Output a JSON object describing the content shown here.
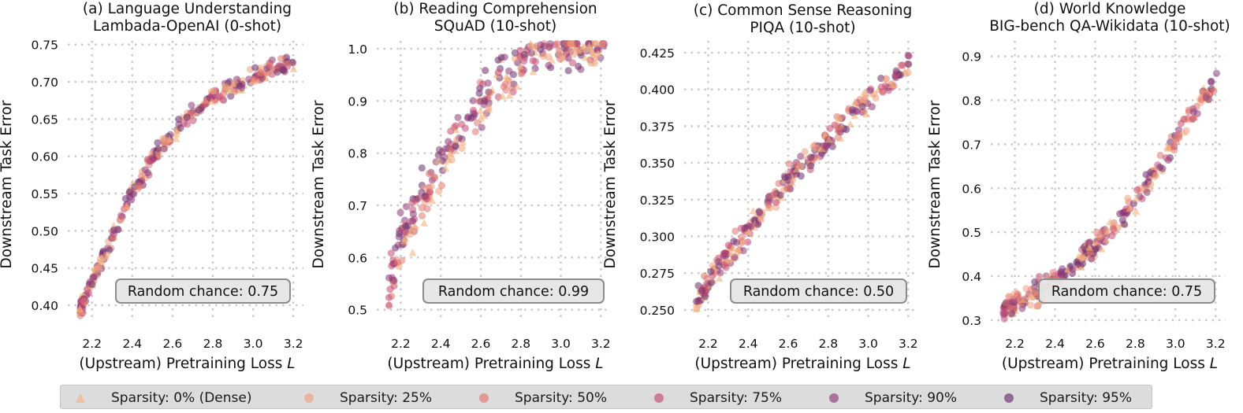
{
  "figure": {
    "xlabel": "(Upstream) Pretraining Loss L",
    "ylabel": "Downstream Task Error"
  },
  "legend": {
    "items": [
      {
        "label": "Sparsity: 0% (Dense)",
        "color": "#f2b27e",
        "marker": "triangle"
      },
      {
        "label": "Sparsity: 25%",
        "color": "#eea27f",
        "marker": "circle"
      },
      {
        "label": "Sparsity: 50%",
        "color": "#e0766f",
        "marker": "circle"
      },
      {
        "label": "Sparsity: 75%",
        "color": "#c44a72",
        "marker": "circle"
      },
      {
        "label": "Sparsity: 90%",
        "color": "#8e3a78",
        "marker": "circle"
      },
      {
        "label": "Sparsity: 95%",
        "color": "#6a2e6e",
        "marker": "circle"
      }
    ]
  },
  "chart_data": [
    {
      "type": "scatter",
      "title": [
        "(a) Language Understanding",
        "Lambada-OpenAI (0-shot)"
      ],
      "xlabel": "(Upstream) Pretraining Loss L",
      "ylabel": "Downstream Task Error",
      "xlim": [
        2.08,
        3.25
      ],
      "ylim": [
        0.38,
        0.755
      ],
      "xticks": [
        "2.2",
        "2.4",
        "2.6",
        "2.8",
        "3.0",
        "3.2"
      ],
      "yticks": [
        "0.40",
        "0.45",
        "0.50",
        "0.55",
        "0.60",
        "0.65",
        "0.70",
        "0.75"
      ],
      "trend": [
        [
          2.14,
          0.392
        ],
        [
          2.2,
          0.432
        ],
        [
          2.3,
          0.492
        ],
        [
          2.4,
          0.55
        ],
        [
          2.5,
          0.598
        ],
        [
          2.6,
          0.632
        ],
        [
          2.7,
          0.657
        ],
        [
          2.8,
          0.679
        ],
        [
          2.9,
          0.695
        ],
        [
          3.0,
          0.708
        ],
        [
          3.1,
          0.718
        ],
        [
          3.21,
          0.726
        ]
      ],
      "noise": 0.008,
      "annotation": "Random chance: 0.75"
    },
    {
      "type": "scatter",
      "title": [
        "(b) Reading Comprehension",
        "SQuAD (10-shot)"
      ],
      "xlabel": "(Upstream) Pretraining Loss L",
      "ylabel": "Downstream Task Error",
      "xlim": [
        2.08,
        3.25
      ],
      "ylim": [
        0.48,
        1.015
      ],
      "xticks": [
        "2.2",
        "2.4",
        "2.6",
        "2.8",
        "3.0",
        "3.2"
      ],
      "yticks": [
        "0.5",
        "0.6",
        "0.7",
        "0.8",
        "0.9",
        "1.0"
      ],
      "trend": [
        [
          2.14,
          0.5
        ],
        [
          2.2,
          0.6
        ],
        [
          2.3,
          0.68
        ],
        [
          2.4,
          0.76
        ],
        [
          2.5,
          0.83
        ],
        [
          2.6,
          0.88
        ],
        [
          2.7,
          0.93
        ],
        [
          2.8,
          0.97
        ],
        [
          2.9,
          0.99
        ],
        [
          3.0,
          0.995
        ],
        [
          3.1,
          0.998
        ],
        [
          3.2,
          0.999
        ]
      ],
      "noise": 0.03,
      "annotation": "Random chance: 0.99"
    },
    {
      "type": "scatter",
      "title": [
        "(c) Common Sense Reasoning",
        "PIQA (10-shot)"
      ],
      "xlabel": "(Upstream) Pretraining Loss L",
      "ylabel": "Downstream Task Error",
      "xlim": [
        2.08,
        3.25
      ],
      "ylim": [
        0.243,
        0.433
      ],
      "xticks": [
        "2.2",
        "2.4",
        "2.6",
        "2.8",
        "3.0",
        "3.2"
      ],
      "yticks": [
        "0.250",
        "0.275",
        "0.300",
        "0.325",
        "0.350",
        "0.375",
        "0.400",
        "0.425"
      ],
      "trend": [
        [
          2.14,
          0.255
        ],
        [
          2.2,
          0.268
        ],
        [
          2.3,
          0.288
        ],
        [
          2.4,
          0.305
        ],
        [
          2.5,
          0.322
        ],
        [
          2.6,
          0.338
        ],
        [
          2.7,
          0.352
        ],
        [
          2.8,
          0.366
        ],
        [
          2.9,
          0.38
        ],
        [
          3.0,
          0.393
        ],
        [
          3.1,
          0.405
        ],
        [
          3.2,
          0.416
        ]
      ],
      "noise": 0.006,
      "annotation": "Random chance: 0.50"
    },
    {
      "type": "scatter",
      "title": [
        "(d) World Knowledge",
        "BIG-bench QA-Wikidata (10-shot)"
      ],
      "xlabel": "(Upstream) Pretraining Loss L",
      "ylabel": "Downstream Task Error",
      "xlim": [
        2.08,
        3.25
      ],
      "ylim": [
        0.3,
        0.935
      ],
      "xticks": [
        "2.2",
        "2.4",
        "2.6",
        "2.8",
        "3.0",
        "3.2"
      ],
      "yticks": [
        "0.3",
        "0.4",
        "0.5",
        "0.6",
        "0.7",
        "0.8",
        "0.9"
      ],
      "trend": [
        [
          2.14,
          0.322
        ],
        [
          2.2,
          0.338
        ],
        [
          2.3,
          0.362
        ],
        [
          2.4,
          0.392
        ],
        [
          2.5,
          0.43
        ],
        [
          2.6,
          0.47
        ],
        [
          2.7,
          0.52
        ],
        [
          2.8,
          0.575
        ],
        [
          2.9,
          0.64
        ],
        [
          3.0,
          0.71
        ],
        [
          3.1,
          0.78
        ],
        [
          3.2,
          0.845
        ]
      ],
      "noise": 0.018,
      "annotation": "Random chance: 0.75"
    }
  ]
}
